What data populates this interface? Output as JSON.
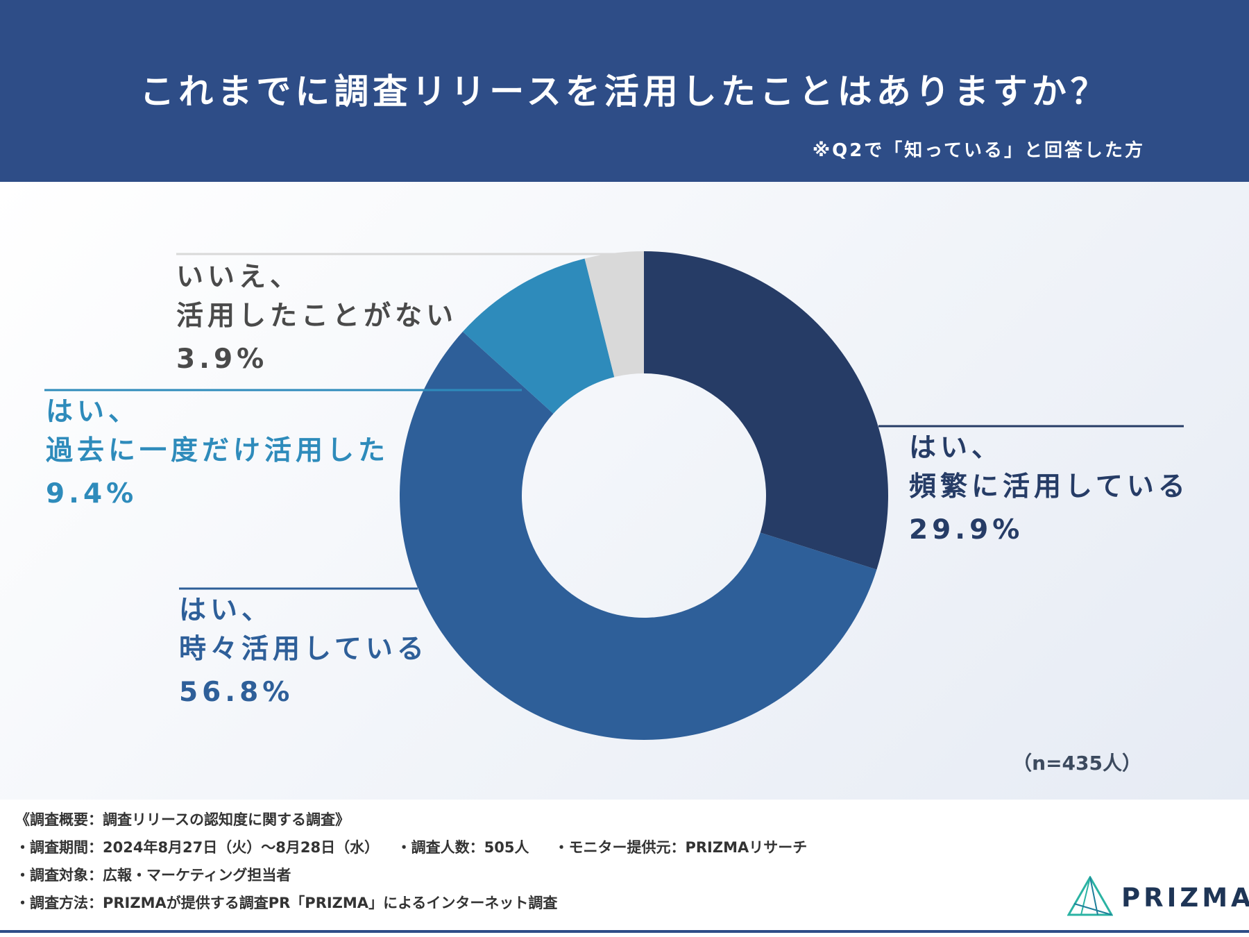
{
  "header": {
    "title": "これまでに調査リリースを活用したことはありますか？",
    "subtitle": "※Q2で「知っている」と回答した方"
  },
  "chart_data": {
    "type": "pie",
    "categories": [
      "はい、頻繁に活用している",
      "はい、時々活用している",
      "はい、過去に一度だけ活用した",
      "いいえ、活用したことがない"
    ],
    "values": [
      29.9,
      56.8,
      9.4,
      3.9
    ],
    "labels": [
      {
        "line1": "はい、",
        "line2": "頻繁に活用している",
        "pct": "29.9%"
      },
      {
        "line1": "はい、",
        "line2": "時々活用している",
        "pct": "56.8%"
      },
      {
        "line1": "はい、",
        "line2": "過去に一度だけ活用した",
        "pct": "9.4%"
      },
      {
        "line1": "いいえ、",
        "line2": "活用したことがない",
        "pct": "3.9%"
      }
    ],
    "colors": [
      "#263c66",
      "#2e5f99",
      "#2e8bbb",
      "#d9d9d9"
    ],
    "label_colors": [
      "#263c66",
      "#2e5f99",
      "#2e8bbb",
      "#4a4a4a"
    ],
    "note": "（n=435人）"
  },
  "footer": {
    "overview": "《調査概要：調査リリースの認知度に関する調査》",
    "period": "・調査期間：2024年8月27日（火）〜8月28日（水）",
    "count": "・調査人数：505人",
    "provider": "・モニター提供元：PRIZMAリサーチ",
    "target": "・調査対象：広報・マーケティング担当者",
    "method": "・調査方法：PRIZMAが提供する調査PR「PRIZMA」によるインターネット調査"
  },
  "logo": {
    "text": "PRIZMA"
  }
}
